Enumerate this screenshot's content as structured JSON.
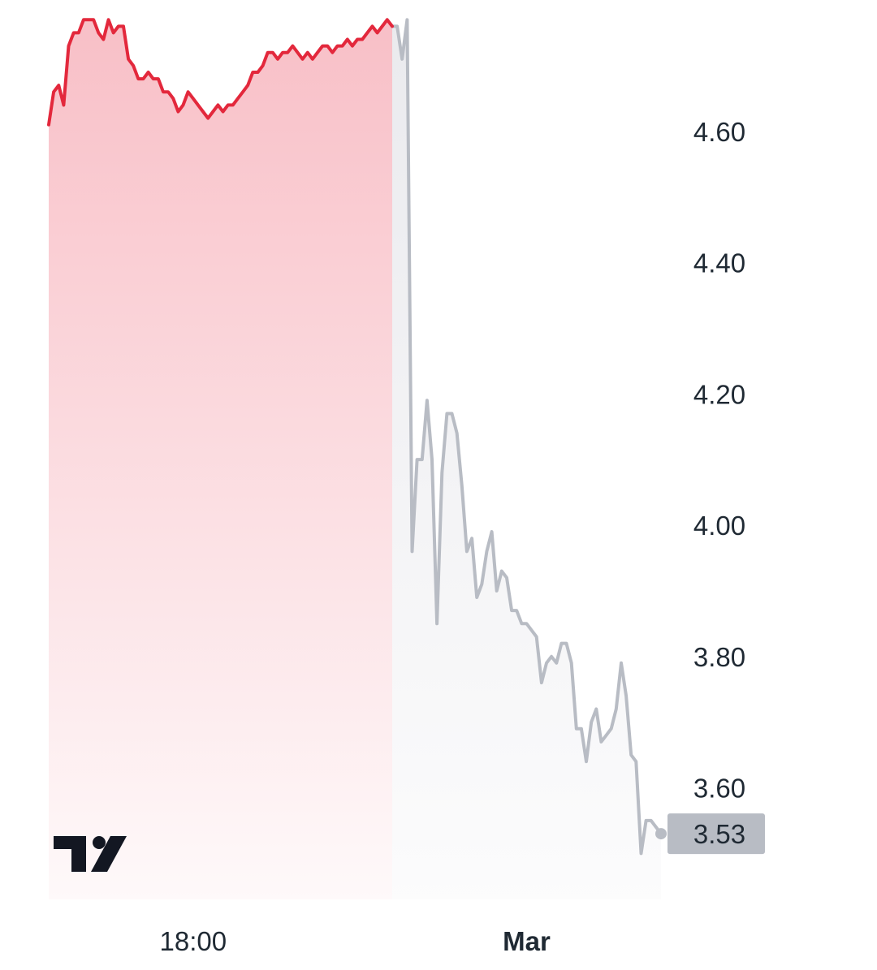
{
  "chart_data": {
    "type": "area",
    "title": "",
    "xlabel": "",
    "ylabel": "",
    "ylim": [
      3.43,
      4.8
    ],
    "y_ticks": [
      "4.60",
      "4.40",
      "4.20",
      "4.00",
      "3.80",
      "3.60"
    ],
    "y_tick_values": [
      4.6,
      4.4,
      4.2,
      4.0,
      3.8,
      3.6
    ],
    "x_tick_labels": [
      {
        "label": "18:00",
        "index": 29,
        "bold": false
      },
      {
        "label": "Mar",
        "index": 96,
        "bold": true
      }
    ],
    "colors": {
      "active_line": "#e3283c",
      "active_fill": "#f7b4bd",
      "inactive_line": "#b8bcc4",
      "inactive_fill": "#e8e8ec",
      "price_label_bg": "#b8bcc4",
      "text": "#1f2933",
      "logo": "#131722"
    },
    "last_price": "3.53",
    "logo_icon": "tradingview-logo-icon",
    "series": [
      {
        "segment": "active",
        "values": [
          4.61,
          4.66,
          4.67,
          4.64,
          4.73,
          4.75,
          4.75,
          4.77,
          4.77,
          4.77,
          4.75,
          4.74,
          4.77,
          4.75,
          4.76,
          4.76,
          4.71,
          4.7,
          4.68,
          4.68,
          4.69,
          4.68,
          4.68,
          4.66,
          4.66,
          4.65,
          4.63,
          4.64,
          4.66,
          4.65,
          4.64,
          4.63,
          4.62,
          4.63,
          4.64,
          4.63,
          4.64,
          4.64,
          4.65,
          4.66,
          4.67,
          4.69,
          4.69,
          4.7,
          4.72,
          4.72,
          4.71,
          4.72,
          4.72,
          4.73,
          4.72,
          4.71,
          4.72,
          4.71,
          4.72,
          4.73,
          4.73,
          4.72,
          4.73,
          4.73,
          4.74,
          4.73,
          4.74,
          4.74,
          4.75,
          4.76,
          4.75,
          4.76,
          4.77,
          4.76
        ]
      },
      {
        "segment": "inactive",
        "values": [
          4.76,
          4.71,
          4.77,
          3.96,
          4.1,
          4.1,
          4.19,
          4.1,
          3.85,
          4.08,
          4.17,
          4.17,
          4.14,
          4.06,
          3.96,
          3.98,
          3.89,
          3.91,
          3.96,
          3.99,
          3.9,
          3.93,
          3.92,
          3.87,
          3.87,
          3.85,
          3.85,
          3.84,
          3.83,
          3.76,
          3.79,
          3.8,
          3.79,
          3.82,
          3.82,
          3.79,
          3.69,
          3.69,
          3.64,
          3.7,
          3.72,
          3.67,
          3.68,
          3.69,
          3.72,
          3.79,
          3.74,
          3.65,
          3.64,
          3.5,
          3.55,
          3.55,
          3.54,
          3.53
        ]
      }
    ]
  }
}
